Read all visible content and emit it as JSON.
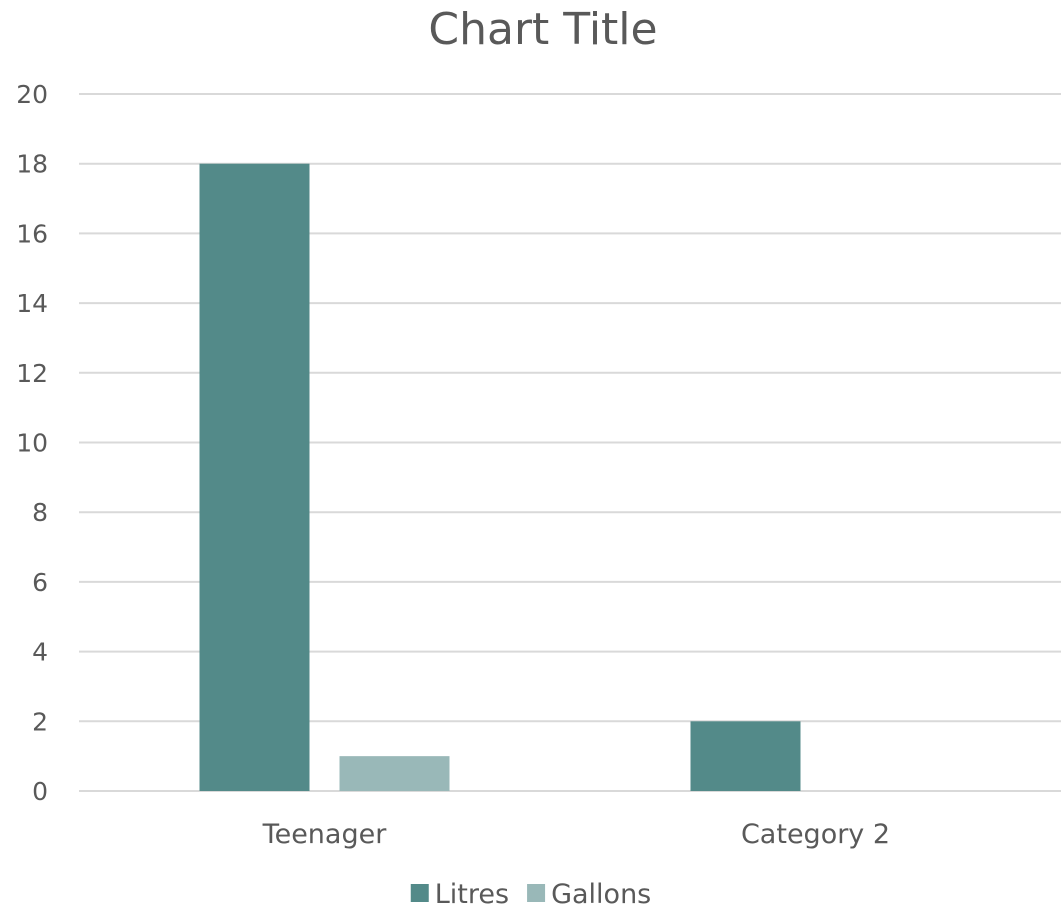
{
  "chart_data": {
    "type": "bar",
    "title": "Chart Title",
    "xlabel": "",
    "ylabel": "",
    "categories": [
      "Teenager",
      "Category 2"
    ],
    "series": [
      {
        "name": "Litres",
        "values": [
          18,
          2
        ],
        "color": "#538a89"
      },
      {
        "name": "Gallons",
        "values": [
          1,
          0
        ],
        "color": "#99b8b8"
      }
    ],
    "ylim": [
      0,
      20
    ],
    "yticks": [
      0,
      2,
      4,
      6,
      8,
      10,
      12,
      14,
      16,
      18,
      20
    ],
    "grid": true,
    "legend_position": "bottom"
  }
}
